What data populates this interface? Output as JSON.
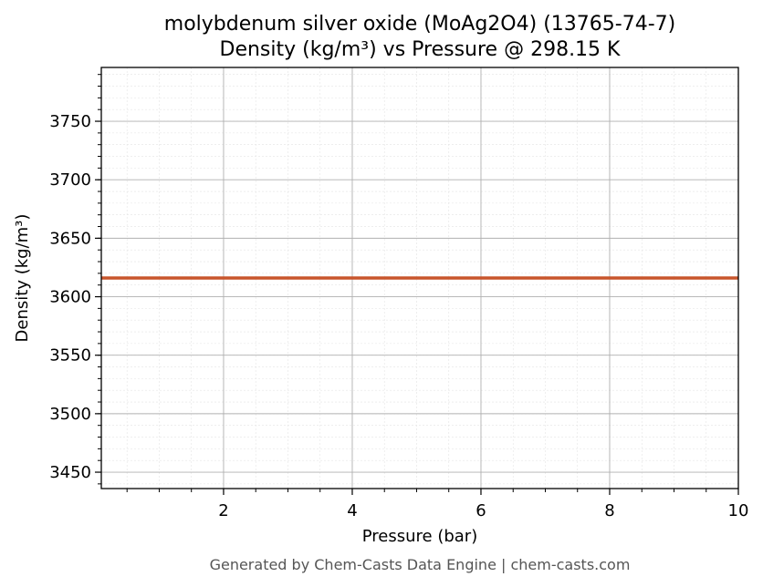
{
  "chart_data": {
    "type": "line",
    "title": "molybdenum silver oxide (MoAg2O4) (13765-74-7)",
    "subtitle": "Density (kg/m³) vs Pressure @ 298.15 K",
    "xlabel": "Pressure (bar)",
    "ylabel": "Density (kg/m³)",
    "xlim": [
      0.1,
      10
    ],
    "ylim": [
      3436,
      3796
    ],
    "x_ticks": [
      2,
      4,
      6,
      8,
      10
    ],
    "x_tick_labels": [
      "2",
      "4",
      "6",
      "8",
      "10"
    ],
    "y_ticks": [
      3450,
      3500,
      3550,
      3600,
      3650,
      3700,
      3750
    ],
    "y_tick_labels": [
      "3450",
      "3500",
      "3550",
      "3600",
      "3650",
      "3700",
      "3750"
    ],
    "grid": true,
    "series": [
      {
        "color": "#c8552b",
        "x": [
          0.1,
          10
        ],
        "y": [
          3616,
          3616
        ]
      }
    ]
  },
  "footer": "Generated by Chem-Casts Data Engine | chem-casts.com"
}
